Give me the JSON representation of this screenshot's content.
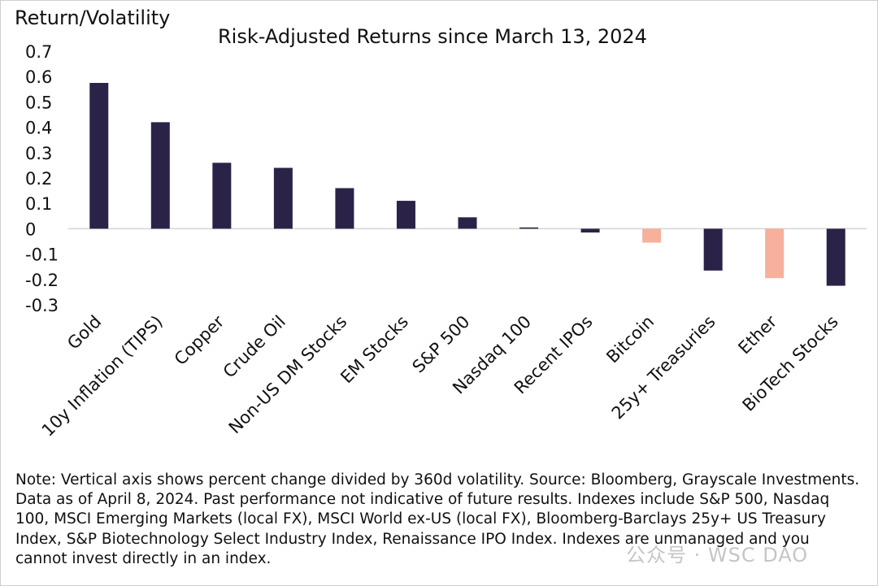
{
  "chart_data": {
    "type": "bar",
    "title": "Risk-Adjusted Returns since March 13, 2024",
    "ylabel": "Return/Volatility",
    "xlabel": "",
    "ylim": [
      -0.3,
      0.7
    ],
    "yticks": [
      0.7,
      0.6,
      0.5,
      0.4,
      0.3,
      0.2,
      0.1,
      0,
      -0.1,
      -0.2,
      -0.3
    ],
    "ytick_labels": [
      "0.7",
      "0.6",
      "0.5",
      "0.4",
      "0.3",
      "0.2",
      "0.1",
      "0",
      "-0.1",
      "-0.2",
      "-0.3"
    ],
    "categories": [
      "Gold",
      "10y Inflation (TIPS)",
      "Copper",
      "Crude Oil",
      "Non-US DM Stocks",
      "EM Stocks",
      "S&P 500",
      "Nasdaq 100",
      "Recent IPOs",
      "Bitcoin",
      "25y+ Treasuries",
      "Ether",
      "BioTech Stocks"
    ],
    "values": [
      0.575,
      0.42,
      0.26,
      0.24,
      0.16,
      0.11,
      0.045,
      0.005,
      -0.015,
      -0.055,
      -0.165,
      -0.195,
      -0.225
    ],
    "highlight": [
      "Bitcoin",
      "Ether"
    ],
    "grid": false,
    "legend": "none",
    "colors": {
      "default": "#2b2347",
      "highlight": "#f7b09b",
      "axis": "#d4d4d4"
    }
  },
  "note": "Note: Vertical axis shows percent change divided by 360d volatility. Source: Bloomberg, Grayscale Investments. Data as of April 8, 2024. Past performance not indicative of future results. Indexes include S&P 500, Nasdaq 100, MSCI Emerging Markets (local FX), MSCI World ex-US (local FX),  Bloomberg-Barclays 25y+ US Treasury Index, S&P Biotechnology Select Industry Index, Renaissance IPO Index. Indexes are unmanaged and you cannot invest directly in an index.",
  "watermark": "公众号 · WSC DAO"
}
